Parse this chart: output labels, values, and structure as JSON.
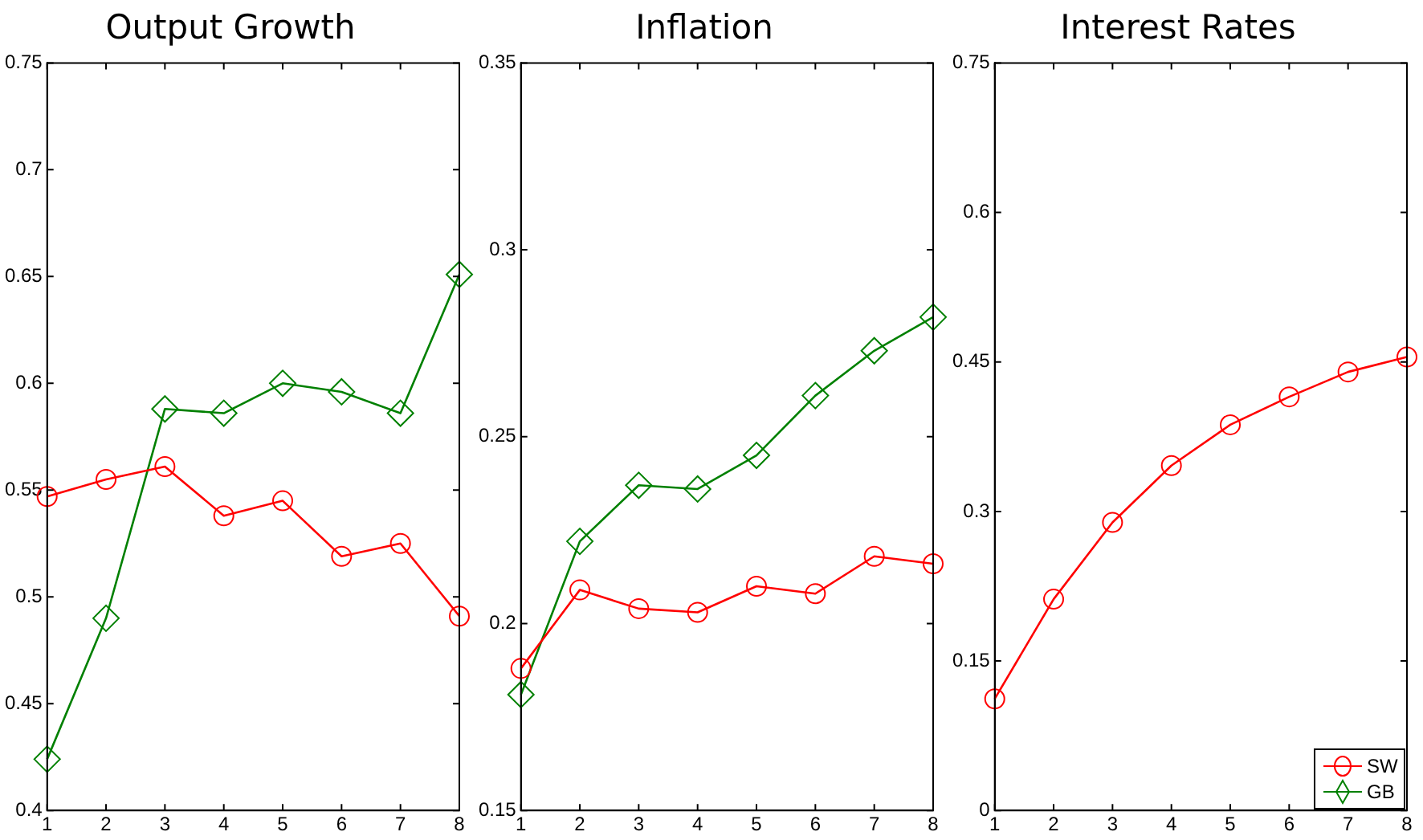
{
  "chart_data": [
    {
      "type": "line",
      "title": "Output Growth",
      "x": [
        1,
        2,
        3,
        4,
        5,
        6,
        7,
        8
      ],
      "xlim": [
        1,
        8
      ],
      "xticks": [
        1,
        2,
        3,
        4,
        5,
        6,
        7,
        8
      ],
      "ylim": [
        0.4,
        0.75
      ],
      "yticks": [
        0.4,
        0.45,
        0.5,
        0.55,
        0.6,
        0.65,
        0.7,
        0.75
      ],
      "grid": false,
      "legend": false,
      "line_style": "solid",
      "series": [
        {
          "color": "#ff0000",
          "marker": "circle",
          "values": [
            0.547,
            0.555,
            0.561,
            0.538,
            0.545,
            0.519,
            0.525,
            0.491
          ]
        },
        {
          "color": "#008000",
          "marker": "diamond",
          "values": [
            0.424,
            0.49,
            0.588,
            0.586,
            0.6,
            0.596,
            0.586,
            0.651
          ]
        }
      ]
    },
    {
      "type": "line",
      "title": "Inflation",
      "x": [
        1,
        2,
        3,
        4,
        5,
        6,
        7,
        8
      ],
      "xlim": [
        1,
        8
      ],
      "xticks": [
        1,
        2,
        3,
        4,
        5,
        6,
        7,
        8
      ],
      "ylim": [
        0.15,
        0.35
      ],
      "yticks": [
        0.15,
        0.2,
        0.25,
        0.3,
        0.35
      ],
      "grid": false,
      "legend": false,
      "line_style": "solid",
      "series": [
        {
          "color": "#ff0000",
          "marker": "circle",
          "values": [
            0.188,
            0.209,
            0.204,
            0.203,
            0.21,
            0.208,
            0.218,
            0.216
          ]
        },
        {
          "color": "#008000",
          "marker": "diamond",
          "values": [
            0.181,
            0.222,
            0.237,
            0.236,
            0.245,
            0.261,
            0.273,
            0.282
          ]
        }
      ]
    },
    {
      "type": "line",
      "title": "Interest Rates",
      "x": [
        1,
        2,
        3,
        4,
        5,
        6,
        7,
        8
      ],
      "xlim": [
        1,
        8
      ],
      "xticks": [
        1,
        2,
        3,
        4,
        5,
        6,
        7,
        8
      ],
      "ylim": [
        0,
        0.75
      ],
      "yticks": [
        0,
        0.15,
        0.3,
        0.45,
        0.6,
        0.75
      ],
      "grid": false,
      "legend": "bottom right",
      "line_style": "solid",
      "series": [
        {
          "name": "SW",
          "color": "#ff0000",
          "marker": "circle",
          "values": [
            0.112,
            0.212,
            0.289,
            0.346,
            0.387,
            0.415,
            0.44,
            0.455
          ]
        },
        {
          "name": "GB",
          "color": "#008000",
          "marker": "diamond",
          "values": [
            null,
            null,
            null,
            null,
            null,
            null,
            null,
            null
          ]
        }
      ]
    }
  ]
}
